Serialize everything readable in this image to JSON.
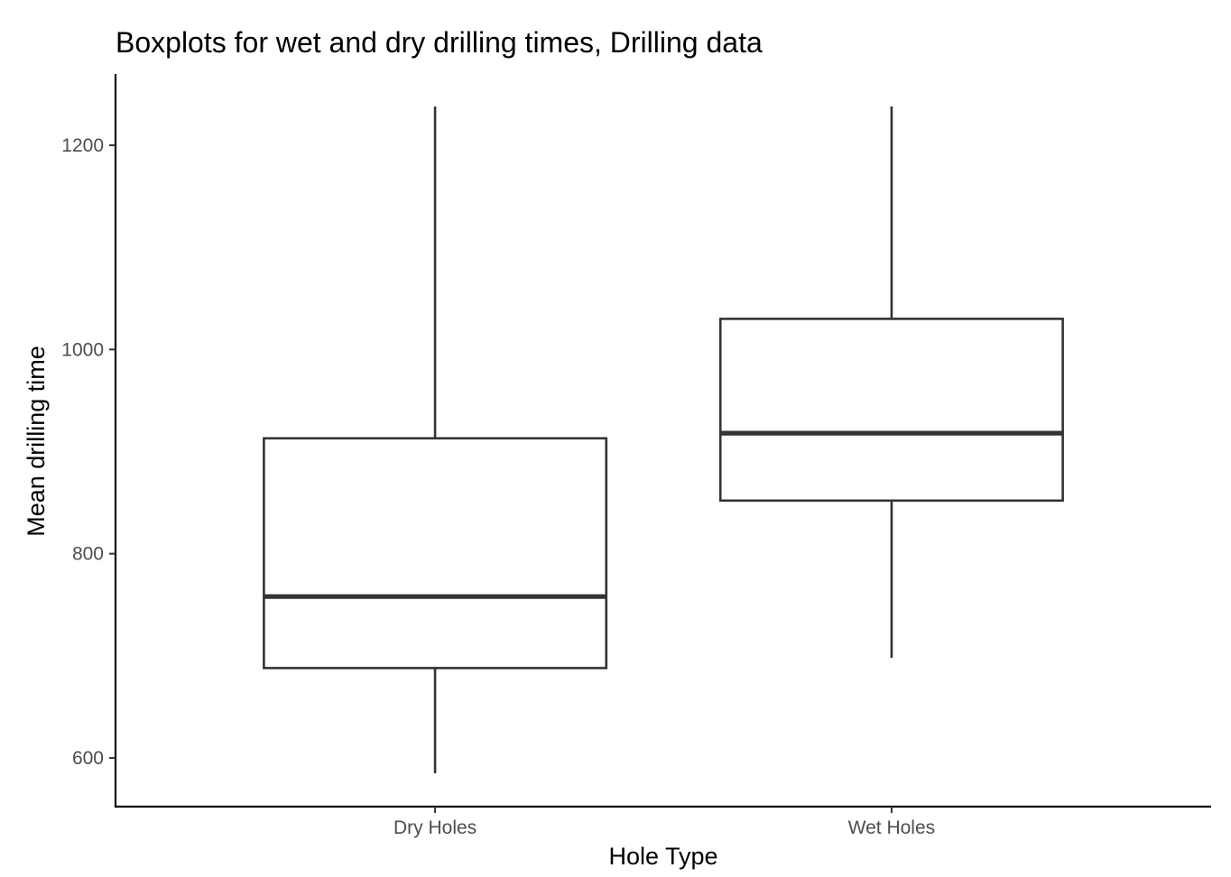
{
  "chart_data": {
    "type": "boxplot",
    "title": "Boxplots for wet and dry drilling times, Drilling data",
    "xlabel": "Hole Type",
    "ylabel": "Mean drilling time",
    "categories": [
      "Dry Holes",
      "Wet Holes"
    ],
    "boxes": [
      {
        "category": "Dry Holes",
        "min": 585,
        "q1": 688,
        "median": 758,
        "q3": 913,
        "max": 1238
      },
      {
        "category": "Wet Holes",
        "min": 698,
        "q1": 852,
        "median": 918,
        "q3": 1030,
        "max": 1238
      }
    ],
    "yticks": [
      600,
      800,
      1000,
      1200
    ],
    "ylim": [
      550,
      1270
    ],
    "grid": false,
    "legend": "none",
    "colors": {
      "box_fill": "#ffffff",
      "box_stroke": "#333333",
      "axis": "#000000",
      "tick_label": "#4d4d4d"
    }
  }
}
